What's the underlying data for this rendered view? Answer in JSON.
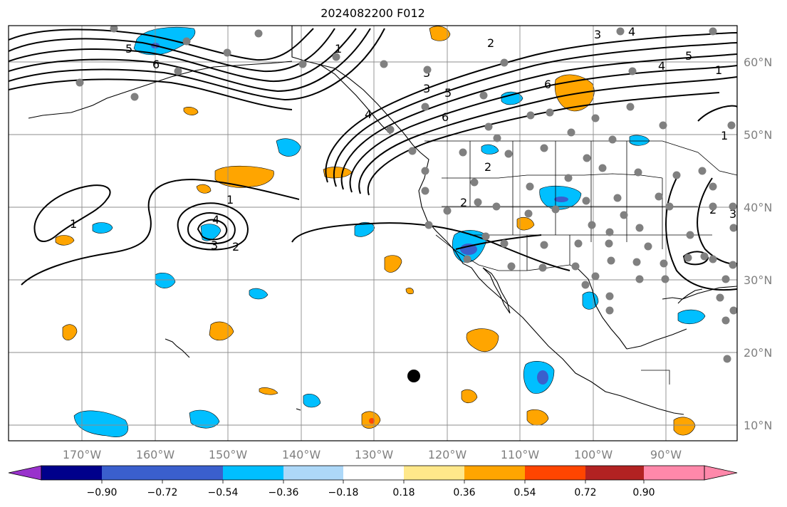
{
  "title": "2024082200 F012",
  "lon_labels": [
    "170°W",
    "160°W",
    "150°W",
    "140°W",
    "130°W",
    "120°W",
    "110°W",
    "100°W",
    "90°W"
  ],
  "lat_labels": [
    "60°N",
    "50°N",
    "40°N",
    "30°N",
    "20°N",
    "10°N"
  ],
  "colorbar": {
    "ticks": [
      "−0.90",
      "−0.72",
      "−0.54",
      "−0.36",
      "−0.18",
      "0.18",
      "0.36",
      "0.54",
      "0.72",
      "0.90"
    ],
    "colors": [
      "#9932cc",
      "#00008b",
      "#3a5fcd",
      "#00bfff",
      "#add8f8",
      "#ffffff",
      "#ffe88a",
      "#ffa500",
      "#ff4500",
      "#b22222",
      "#ff88aa"
    ]
  },
  "contour_labels": [
    "1",
    "2",
    "3",
    "4",
    "5",
    "6",
    "1",
    "2",
    "3",
    "4",
    "1",
    "2",
    "3",
    "4",
    "5",
    "6",
    "1",
    "2",
    "3",
    "4",
    "5",
    "6",
    "1",
    "2",
    "3"
  ],
  "colors": {
    "frame": "#000000",
    "grid": "#8c8c8c",
    "station": "#808080",
    "marker": "#000000"
  }
}
